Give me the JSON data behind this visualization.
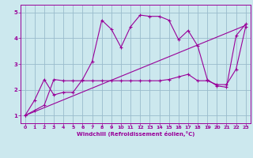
{
  "title": "",
  "xlabel": "Windchill (Refroidissement éolien,°C)",
  "background_color": "#cce8ee",
  "line_color": "#990099",
  "grid_color": "#99bbcc",
  "xlim": [
    -0.5,
    23.5
  ],
  "ylim": [
    0.7,
    5.3
  ],
  "xticks": [
    0,
    1,
    2,
    3,
    4,
    5,
    6,
    7,
    8,
    9,
    10,
    11,
    12,
    13,
    14,
    15,
    16,
    17,
    18,
    19,
    20,
    21,
    22,
    23
  ],
  "yticks": [
    1,
    2,
    3,
    4,
    5
  ],
  "series1_x": [
    0,
    1,
    2,
    3,
    4,
    5,
    6,
    7,
    8,
    9,
    10,
    11,
    12,
    13,
    14,
    15,
    16,
    17,
    18,
    19,
    20,
    21,
    22,
    23
  ],
  "series1_y": [
    1.0,
    1.6,
    2.4,
    1.8,
    1.9,
    1.9,
    2.4,
    3.1,
    4.7,
    4.35,
    3.65,
    4.45,
    4.9,
    4.85,
    4.85,
    4.7,
    3.95,
    4.3,
    3.7,
    2.4,
    2.15,
    2.1,
    4.1,
    4.55
  ],
  "series2_x": [
    0,
    1,
    2,
    3,
    4,
    5,
    6,
    7,
    8,
    9,
    10,
    11,
    12,
    13,
    14,
    15,
    16,
    17,
    18,
    19,
    20,
    21,
    22,
    23
  ],
  "series2_y": [
    1.0,
    1.2,
    1.4,
    2.4,
    2.35,
    2.35,
    2.35,
    2.35,
    2.35,
    2.35,
    2.35,
    2.35,
    2.35,
    2.35,
    2.35,
    2.4,
    2.5,
    2.6,
    2.35,
    2.35,
    2.2,
    2.2,
    2.8,
    4.45
  ],
  "series3_x": [
    0,
    23
  ],
  "series3_y": [
    1.0,
    4.5
  ],
  "xlabel_fontsize": 5.0,
  "tick_fontsize": 4.5,
  "linewidth": 0.8,
  "markersize": 3.0
}
